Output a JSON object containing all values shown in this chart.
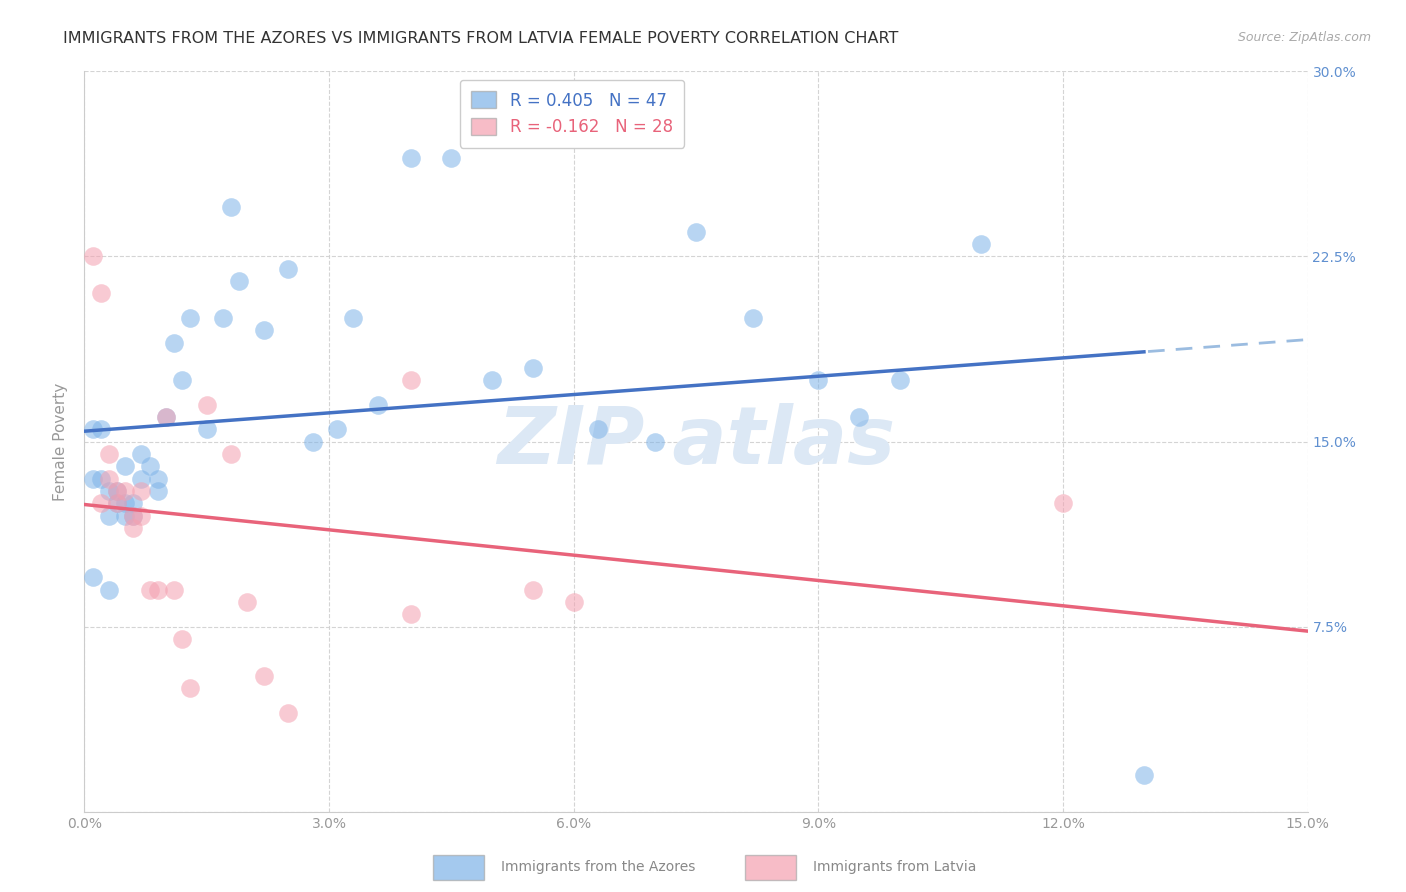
{
  "title": "IMMIGRANTS FROM THE AZORES VS IMMIGRANTS FROM LATVIA FEMALE POVERTY CORRELATION CHART",
  "source": "Source: ZipAtlas.com",
  "ylabel": "Female Poverty",
  "xlim": [
    0.0,
    0.15
  ],
  "ylim": [
    0.0,
    0.3
  ],
  "xticks": [
    0.0,
    0.03,
    0.06,
    0.09,
    0.12,
    0.15
  ],
  "yticks": [
    0.0,
    0.075,
    0.15,
    0.225,
    0.3
  ],
  "xticklabels": [
    "0.0%",
    "3.0%",
    "6.0%",
    "9.0%",
    "12.0%",
    "15.0%"
  ],
  "yticklabels_right": [
    "",
    "7.5%",
    "15.0%",
    "22.5%",
    "30.0%"
  ],
  "azores_color": "#7EB3E8",
  "latvia_color": "#F4A0B0",
  "azores_R": 0.405,
  "azores_N": 47,
  "latvia_R": -0.162,
  "latvia_N": 28,
  "legend_label_azores": "Immigrants from the Azores",
  "legend_label_latvia": "Immigrants from Latvia",
  "azores_x": [
    0.001,
    0.001,
    0.002,
    0.002,
    0.003,
    0.003,
    0.004,
    0.004,
    0.005,
    0.005,
    0.005,
    0.006,
    0.006,
    0.007,
    0.007,
    0.008,
    0.009,
    0.009,
    0.01,
    0.011,
    0.012,
    0.013,
    0.015,
    0.017,
    0.018,
    0.019,
    0.022,
    0.025,
    0.028,
    0.031,
    0.033,
    0.036,
    0.04,
    0.045,
    0.05,
    0.055,
    0.063,
    0.07,
    0.075,
    0.082,
    0.09,
    0.095,
    0.1,
    0.11,
    0.13,
    0.001,
    0.003
  ],
  "azores_y": [
    0.155,
    0.135,
    0.155,
    0.135,
    0.13,
    0.12,
    0.125,
    0.13,
    0.12,
    0.125,
    0.14,
    0.12,
    0.125,
    0.135,
    0.145,
    0.14,
    0.135,
    0.13,
    0.16,
    0.19,
    0.175,
    0.2,
    0.155,
    0.2,
    0.245,
    0.215,
    0.195,
    0.22,
    0.15,
    0.155,
    0.2,
    0.165,
    0.265,
    0.265,
    0.175,
    0.18,
    0.155,
    0.15,
    0.235,
    0.2,
    0.175,
    0.16,
    0.175,
    0.23,
    0.015,
    0.095,
    0.09
  ],
  "latvia_x": [
    0.001,
    0.002,
    0.002,
    0.003,
    0.003,
    0.004,
    0.004,
    0.005,
    0.006,
    0.006,
    0.007,
    0.007,
    0.008,
    0.009,
    0.01,
    0.011,
    0.012,
    0.013,
    0.015,
    0.018,
    0.02,
    0.022,
    0.025,
    0.04,
    0.055,
    0.06,
    0.12,
    0.04
  ],
  "latvia_y": [
    0.225,
    0.21,
    0.125,
    0.135,
    0.145,
    0.125,
    0.13,
    0.13,
    0.12,
    0.115,
    0.13,
    0.12,
    0.09,
    0.09,
    0.16,
    0.09,
    0.07,
    0.05,
    0.165,
    0.145,
    0.085,
    0.055,
    0.04,
    0.08,
    0.09,
    0.085,
    0.125,
    0.175
  ],
  "background_color": "#ffffff",
  "grid_color": "#d0d0d0",
  "watermark_color": "#DCE8F5",
  "title_fontsize": 11.5,
  "axis_label_fontsize": 11,
  "tick_fontsize": 10,
  "legend_fontsize": 12
}
